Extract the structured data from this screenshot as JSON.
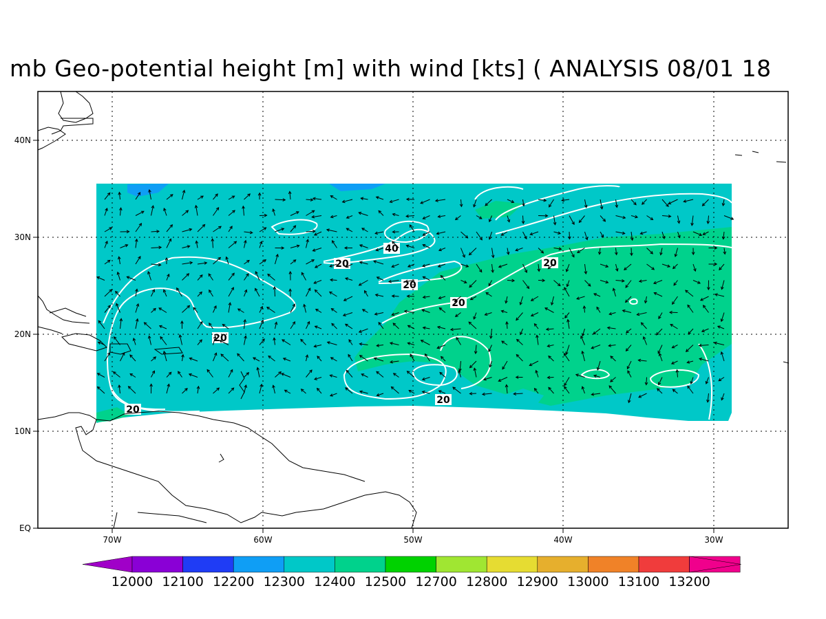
{
  "title": "mb Geo-potential height [m] with wind [kts] ( ANALYSIS 08/01 18",
  "axes": {
    "lon_labels": [
      "70W",
      "60W",
      "50W",
      "40W",
      "30W"
    ],
    "lat_labels": [
      "EQ",
      "10N",
      "20N",
      "30N",
      "40N"
    ]
  },
  "contour_labels": [
    "40",
    "20",
    "20",
    "20",
    "20",
    "20",
    "20",
    "20"
  ],
  "colorbar": {
    "labels": [
      "12000",
      "12100",
      "12200",
      "12300",
      "12400",
      "12500",
      "12700",
      "12800",
      "12900",
      "13000",
      "13100",
      "13200"
    ],
    "colors": [
      "#8a00d6",
      "#1f3cf5",
      "#0f9ef5",
      "#00c8c8",
      "#00d28c",
      "#00d200",
      "#a0e632",
      "#e6dc32",
      "#e6af2d",
      "#f08228",
      "#f03c3c",
      "#f0008c"
    ],
    "min_color": "#a000c8",
    "max_color": "#f0008c"
  },
  "colors": {
    "band_12300": "#00c8c8",
    "band_12400": "#00d28c",
    "band_12200": "#0f9ef5",
    "contour": "#ffffff",
    "coast": "#000000"
  }
}
